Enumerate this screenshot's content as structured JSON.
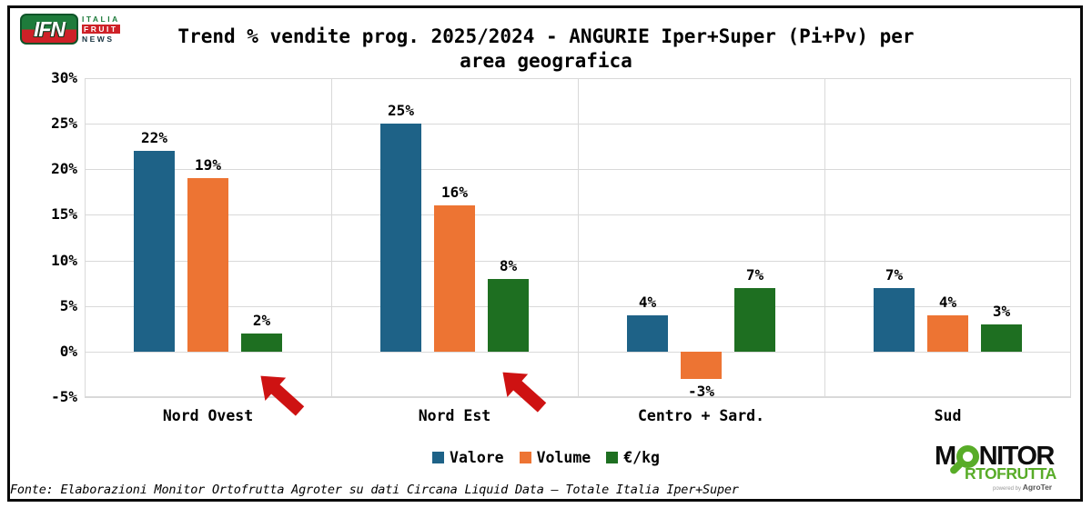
{
  "header": {
    "ifn_logo": {
      "acronym": "IFN",
      "word1": "ITALIA",
      "word2": "FRUIT",
      "word3": "NEWS"
    },
    "title_line1": "Trend % vendite prog. 2025/2024 - ANGURIE Iper+Super (Pi+Pv) per",
    "title_line2": "area geografica"
  },
  "chart_data": {
    "type": "bar",
    "title": "Trend % vendite prog. 2025/2024 - ANGURIE Iper+Super (Pi+Pv) per area geografica",
    "categories": [
      "Nord Ovest",
      "Nord Est",
      "Centro + Sard.",
      "Sud"
    ],
    "series": [
      {
        "name": "Valore",
        "color": "#1E6287",
        "values": [
          22,
          25,
          4,
          7
        ],
        "labels": [
          "22%",
          "25%",
          "4%",
          "7%"
        ]
      },
      {
        "name": "Volume",
        "color": "#ED7433",
        "values": [
          19,
          16,
          -3,
          4
        ],
        "labels": [
          "19%",
          "16%",
          "-3%",
          "4%"
        ]
      },
      {
        "name": "€/kg",
        "color": "#1E6F21",
        "values": [
          2,
          8,
          7,
          3
        ],
        "labels": [
          "2%",
          "8%",
          "7%",
          "3%"
        ]
      }
    ],
    "ylim": [
      -5,
      30
    ],
    "yticks": [
      "30%",
      "25%",
      "20%",
      "15%",
      "10%",
      "5%",
      "0%",
      "-5%"
    ],
    "grid": true,
    "legend_position": "bottom",
    "annotations": [
      {
        "type": "arrow",
        "color": "#CE1212",
        "points_to": "Nord Ovest"
      },
      {
        "type": "arrow",
        "color": "#CE1212",
        "points_to": "Nord Est"
      }
    ]
  },
  "footer": {
    "source": "Fonte: Elaborazioni Monitor Ortofrutta Agroter su dati Circana Liquid Data – Totale Italia Iper+Super",
    "monitor_logo": {
      "line1_start": "M",
      "line1_end": "NITOR",
      "line2": "RTOFRUTTA",
      "powered_by": "powered by ",
      "powered_brand": "AgroTer"
    }
  }
}
